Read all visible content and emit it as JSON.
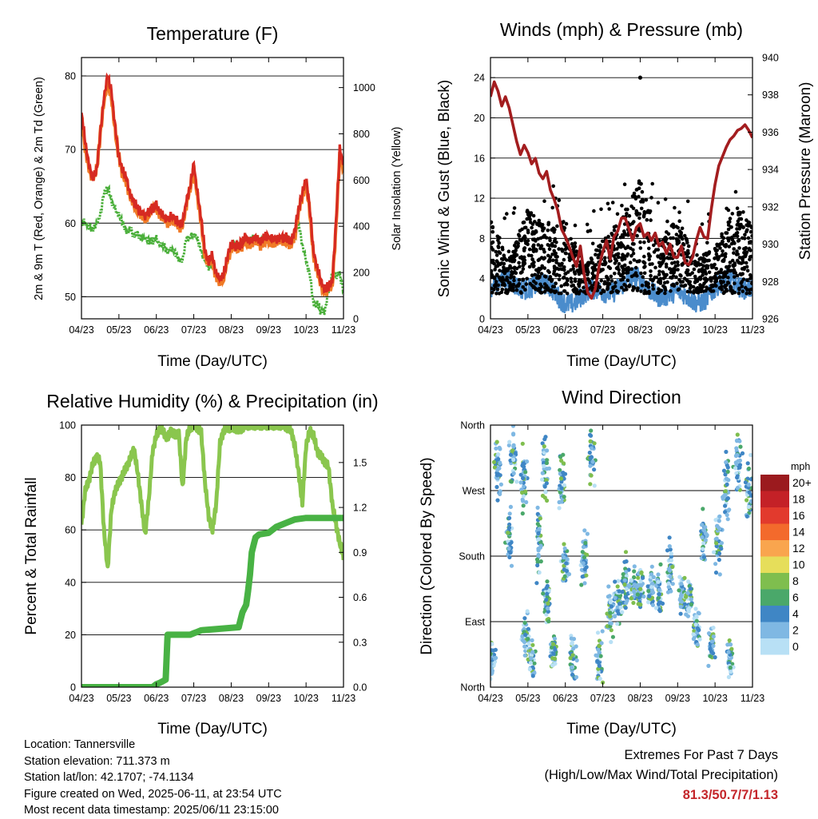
{
  "time_ticks": [
    "04/23",
    "05/23",
    "06/23",
    "07/23",
    "08/23",
    "09/23",
    "10/23",
    "11/23"
  ],
  "temperature": {
    "title": "Temperature (F)",
    "ylabel_left": "2m & 9m T (Red, Orange) & 2m Td (Green)",
    "ylabel_right": "Solar Insolation (Yellow)",
    "xlabel": "Time (Day/UTC)"
  },
  "winds": {
    "title": "Winds (mph) & Pressure (mb)",
    "ylabel_left": "Sonic Wind & Gust (Blue, Black)",
    "ylabel_right": "Station Pressure (Maroon)",
    "xlabel": "Time (Day/UTC)"
  },
  "humidity": {
    "title": "Relative Humidity (%) & Precipitation (in)",
    "ylabel_left": "Percent & Total Rainfall",
    "xlabel": "Time (Day/UTC)"
  },
  "wind_direction": {
    "title": "Wind Direction",
    "ylabel_left": "Direction (Colored By Speed)",
    "xlabel": "Time (Day/UTC)",
    "legend_title": "mph",
    "legend_labels": [
      "20+",
      "18",
      "16",
      "14",
      "12",
      "10",
      "8",
      "6",
      "4",
      "2",
      "0"
    ],
    "legend_colors": [
      "#9b1a1e",
      "#c42127",
      "#e23a2d",
      "#f36a2c",
      "#f9a54e",
      "#e6de5a",
      "#7fbe4e",
      "#4aa86a",
      "#3f86c5",
      "#7fb8e3",
      "#b8e0f5"
    ]
  },
  "info": {
    "location": "Location: Tannersville",
    "elevation": "Station elevation: 711.373 m",
    "latlon": "Station lat/lon: 42.1707; -74.1134",
    "created": "Figure created on Wed, 2025-06-11, at 23:54 UTC",
    "recent": "Most recent data timestamp: 2025/06/11 23:15:00"
  },
  "extremes": {
    "line1": "Extremes For Past 7 Days",
    "line2": "(High/Low/Max Wind/Total Precipitation)",
    "value": "81.3/50.7/7/1.13"
  },
  "chart_data": [
    {
      "type": "line",
      "title": "Temperature (F)",
      "xlabel": "Time (Day/UTC)",
      "ylabel": "2m & 9m T (Red, Orange) & 2m Td (Green)",
      "y2label": "Solar Insolation (Yellow)",
      "x_ticks": [
        "04/23",
        "05/23",
        "06/23",
        "07/23",
        "08/23",
        "09/23",
        "10/23",
        "11/23"
      ],
      "y_ticks": [
        50,
        60,
        70,
        80
      ],
      "y2_ticks": [
        0,
        200,
        400,
        600,
        800,
        1000
      ],
      "ylim": [
        47,
        82.5
      ],
      "y2lim": [
        0,
        1130
      ],
      "x": [
        0,
        0.1,
        0.2,
        0.3,
        0.4,
        0.5,
        0.6,
        0.7,
        0.8,
        0.9,
        1,
        1.1,
        1.2,
        1.3,
        1.4,
        1.5,
        1.6,
        1.7,
        1.8,
        1.9,
        2,
        2.1,
        2.2,
        2.3,
        2.4,
        2.5,
        2.6,
        2.7,
        2.8,
        2.9,
        3,
        3.1,
        3.2,
        3.3,
        3.4,
        3.5,
        3.6,
        3.7,
        3.8,
        3.9,
        4,
        4.1,
        4.2,
        4.3,
        4.4,
        4.5,
        4.6,
        4.7,
        4.8,
        4.9,
        5,
        5.1,
        5.2,
        5.3,
        5.4,
        5.5,
        5.6,
        5.7,
        5.8,
        5.9,
        6,
        6.1,
        6.2,
        6.3,
        6.4,
        6.5,
        6.6,
        6.7,
        6.8,
        6.9,
        7
      ],
      "series": [
        {
          "name": "2m T",
          "color": "#d62a22",
          "values": [
            75,
            71,
            68,
            66,
            67,
            72,
            77,
            80,
            78,
            73,
            69,
            67,
            66,
            64,
            63,
            62,
            61.5,
            61,
            61.5,
            62,
            62.5,
            61.5,
            61,
            60.5,
            61,
            60.5,
            60,
            60,
            63,
            65,
            68,
            64,
            60.5,
            56,
            55,
            55.5,
            53,
            52.5,
            53,
            55.5,
            57,
            57,
            57,
            57.5,
            58,
            57.5,
            58,
            58,
            57.5,
            58,
            58,
            57.8,
            57.8,
            58,
            58,
            58,
            57.5,
            59,
            62,
            64,
            66,
            62,
            56,
            54,
            52,
            51,
            51.5,
            52,
            60,
            70,
            68
          ]
        },
        {
          "name": "9m T",
          "color": "#f07a26",
          "values": [
            74.5,
            70,
            67.5,
            66,
            67,
            72,
            76.5,
            79,
            77,
            72.5,
            69,
            66.5,
            65.5,
            63.5,
            62.5,
            61.5,
            61,
            60.5,
            61,
            62,
            62,
            61,
            60.5,
            60,
            60.5,
            60,
            59.5,
            59.5,
            62.5,
            64.5,
            67.5,
            63.5,
            60,
            55.5,
            54.5,
            55,
            52.5,
            52,
            52.5,
            55,
            56.5,
            56.5,
            56.5,
            57,
            57.5,
            57,
            57.5,
            57.5,
            57,
            57.5,
            57.5,
            57.3,
            57.3,
            57.5,
            57.5,
            57.5,
            57,
            58.5,
            61.5,
            63.5,
            65.5,
            61.5,
            55.5,
            53.5,
            51.5,
            50.5,
            51,
            51.5,
            59.5,
            69.5,
            67.5
          ]
        },
        {
          "name": "2m Td",
          "color": "#4aaf3a",
          "values": [
            60,
            60,
            59.5,
            59,
            60,
            61,
            64,
            65,
            63,
            62,
            61,
            60,
            59,
            59,
            58.5,
            58.5,
            58,
            58,
            57.5,
            57.5,
            58,
            57,
            57,
            56,
            56.5,
            56,
            55,
            55,
            58,
            58,
            58.5,
            58,
            56,
            55,
            54,
            54.5,
            53,
            52,
            52.5,
            55,
            57,
            57,
            57,
            57.5,
            58,
            57.5,
            58,
            58,
            57.5,
            58,
            57.5,
            57.5,
            57.5,
            58,
            58,
            58,
            57.5,
            58,
            60,
            57,
            55,
            53,
            49,
            49,
            48,
            48,
            51,
            53,
            53,
            53,
            51
          ]
        }
      ],
      "solar": {
        "name": "Solar Insolation",
        "color": "#f6df62",
        "peaks": [
          650,
          1000,
          1100,
          300,
          800,
          300,
          1050,
          200,
          750,
          300,
          900,
          400,
          700,
          600,
          300
        ]
      }
    },
    {
      "type": "scatter",
      "title": "Winds (mph) & Pressure (mb)",
      "xlabel": "Time (Day/UTC)",
      "ylabel": "Sonic Wind & Gust (Blue, Black)",
      "y2label": "Station Pressure (Maroon)",
      "x_ticks": [
        "04/23",
        "05/23",
        "06/23",
        "07/23",
        "08/23",
        "09/23",
        "10/23",
        "11/23"
      ],
      "y_ticks": [
        0,
        4,
        8,
        12,
        16,
        20,
        24
      ],
      "y2_ticks": [
        926,
        928,
        930,
        932,
        934,
        936,
        938,
        940
      ],
      "ylim": [
        0,
        26
      ],
      "y2lim": [
        926,
        940
      ],
      "pressure": {
        "name": "Station Pressure",
        "color": "#a31d1f",
        "x": [
          0,
          0.1,
          0.2,
          0.3,
          0.4,
          0.5,
          0.6,
          0.7,
          0.8,
          0.9,
          1,
          1.1,
          1.2,
          1.3,
          1.4,
          1.5,
          1.6,
          1.7,
          1.8,
          1.9,
          2,
          2.1,
          2.2,
          2.3,
          2.4,
          2.5,
          2.6,
          2.7,
          2.8,
          2.9,
          3,
          3.1,
          3.2,
          3.3,
          3.4,
          3.5,
          3.6,
          3.7,
          3.8,
          3.9,
          4,
          4.1,
          4.2,
          4.3,
          4.4,
          4.5,
          4.6,
          4.7,
          4.8,
          4.9,
          5,
          5.1,
          5.2,
          5.3,
          5.4,
          5.5,
          5.6,
          5.7,
          5.8,
          5.9,
          6,
          6.1,
          6.2,
          6.3,
          6.4,
          6.5,
          6.6,
          6.7,
          6.8,
          6.9,
          7
        ],
        "values": [
          937.9,
          938.7,
          938.2,
          937.4,
          937.9,
          937.3,
          936.4,
          935.5,
          934.8,
          935.3,
          934.9,
          934.3,
          934.6,
          933.8,
          933.5,
          933.9,
          932.9,
          932.4,
          931.8,
          930.8,
          930.4,
          929.9,
          929.3,
          928.8,
          929.9,
          928.4,
          927.4,
          927.1,
          927.6,
          928.8,
          929.6,
          930.2,
          929.2,
          930.4,
          930.7,
          931.4,
          931.4,
          930.8,
          930.2,
          930.9,
          931.1,
          930.4,
          930.6,
          930.2,
          930.6,
          929.9,
          930.1,
          929.5,
          930.0,
          929.3,
          929.3,
          929.9,
          929.0,
          928.9,
          929.3,
          930.2,
          930.9,
          930.4,
          930.3,
          931.9,
          933.2,
          934.2,
          934.7,
          935.2,
          935.6,
          935.8,
          936.1,
          936.2,
          936.4,
          936.1,
          935.7
        ]
      },
      "sustained_color": "#4a8ccc",
      "gust_color": "#000000",
      "max_gust": 24
    },
    {
      "type": "line",
      "title": "Relative Humidity (%) & Precipitation (in)",
      "xlabel": "Time (Day/UTC)",
      "ylabel": "Percent & Total Rainfall",
      "x_ticks": [
        "04/23",
        "05/23",
        "06/23",
        "07/23",
        "08/23",
        "09/23",
        "10/23",
        "11/23"
      ],
      "y_ticks": [
        0,
        20,
        40,
        60,
        80,
        100
      ],
      "y2_ticks": [
        "0.0",
        "0.3",
        "0.6",
        "0.9",
        "1.2",
        "1.5"
      ],
      "ylim": [
        0,
        100
      ],
      "y2lim": [
        0,
        1.75
      ],
      "series": [
        {
          "name": "Relative Humidity",
          "color": "#8ac64e",
          "x": [
            0,
            0.1,
            0.2,
            0.3,
            0.4,
            0.5,
            0.6,
            0.7,
            0.8,
            0.9,
            1,
            1.1,
            1.2,
            1.3,
            1.4,
            1.5,
            1.6,
            1.7,
            1.8,
            1.9,
            2,
            2.1,
            2.2,
            2.3,
            2.4,
            2.5,
            2.6,
            2.7,
            2.8,
            2.9,
            3,
            3.1,
            3.2,
            3.3,
            3.4,
            3.5,
            3.6,
            3.7,
            3.8,
            3.9,
            4,
            4.1,
            4.2,
            4.3,
            4.4,
            4.5,
            4.6,
            4.7,
            4.8,
            4.9,
            5,
            5.1,
            5.2,
            5.3,
            5.4,
            5.5,
            5.6,
            5.7,
            5.8,
            5.9,
            6,
            6.1,
            6.2,
            6.3,
            6.4,
            6.5,
            6.6,
            6.7,
            6.8,
            6.9,
            7
          ],
          "values": [
            62,
            75,
            79,
            85,
            88,
            86,
            60,
            45,
            68,
            75,
            78,
            81,
            84,
            87,
            91,
            82,
            70,
            58,
            72,
            90,
            96,
            99,
            97,
            95,
            98,
            96,
            97,
            76,
            95,
            99,
            100,
            99,
            97,
            78,
            65,
            60,
            70,
            93,
            98,
            99,
            99,
            99,
            98,
            99,
            100,
            100,
            100,
            100,
            100,
            100,
            100,
            100,
            100,
            100,
            100,
            99,
            98,
            92,
            82,
            70,
            92,
            98,
            96,
            90,
            88,
            86,
            84,
            70,
            62,
            55,
            50
          ]
        },
        {
          "name": "Total Rainfall",
          "color": "#48b244",
          "x": [
            0,
            0.8,
            1.6,
            1.9,
            2.0,
            2.1,
            2.25,
            2.3,
            2.9,
            3.0,
            3.1,
            3.2,
            4.2,
            4.25,
            4.3,
            4.4,
            4.45,
            4.5,
            4.55,
            4.6,
            4.65,
            4.7,
            4.75,
            5.0,
            5.2,
            5.5,
            5.7,
            6.0,
            7.0
          ],
          "values": [
            0,
            0,
            0,
            0,
            0.02,
            0.03,
            0.05,
            0.35,
            0.35,
            0.36,
            0.37,
            0.38,
            0.4,
            0.45,
            0.5,
            0.55,
            0.64,
            0.75,
            0.9,
            0.95,
            1.0,
            1.01,
            1.02,
            1.03,
            1.07,
            1.1,
            1.12,
            1.13,
            1.13
          ]
        }
      ]
    },
    {
      "type": "scatter",
      "title": "Wind Direction",
      "xlabel": "Time (Day/UTC)",
      "ylabel": "Direction (Colored By Speed)",
      "x_ticks": [
        "04/23",
        "05/23",
        "06/23",
        "07/23",
        "08/23",
        "09/23",
        "10/23",
        "11/23"
      ],
      "y_ticks": [
        "North",
        "East",
        "South",
        "West",
        "North"
      ],
      "ylim": [
        0,
        360
      ],
      "clusters": [
        [
          0.05,
          40,
          25
        ],
        [
          0.2,
          300,
          40
        ],
        [
          0.5,
          200,
          40
        ],
        [
          0.6,
          310,
          40
        ],
        [
          0.9,
          280,
          40
        ],
        [
          0.95,
          70,
          30
        ],
        [
          1.1,
          40,
          25
        ],
        [
          1.3,
          200,
          45
        ],
        [
          1.45,
          300,
          40
        ],
        [
          1.5,
          120,
          30
        ],
        [
          1.7,
          50,
          25
        ],
        [
          1.9,
          280,
          40
        ],
        [
          2.0,
          170,
          30
        ],
        [
          2.2,
          40,
          30
        ],
        [
          2.5,
          180,
          40
        ],
        [
          2.7,
          320,
          40
        ],
        [
          2.9,
          40,
          35
        ],
        [
          3.2,
          100,
          30
        ],
        [
          3.4,
          120,
          30
        ],
        [
          3.6,
          140,
          35
        ],
        [
          3.8,
          140,
          25
        ],
        [
          4.0,
          135,
          25
        ],
        [
          4.3,
          135,
          30
        ],
        [
          4.5,
          130,
          30
        ],
        [
          4.8,
          160,
          35
        ],
        [
          5.1,
          130,
          30
        ],
        [
          5.3,
          120,
          25
        ],
        [
          5.5,
          80,
          30
        ],
        [
          5.7,
          210,
          40
        ],
        [
          5.9,
          60,
          25
        ],
        [
          6.1,
          200,
          40
        ],
        [
          6.3,
          280,
          45
        ],
        [
          6.4,
          40,
          25
        ],
        [
          6.6,
          300,
          50
        ],
        [
          6.9,
          270,
          40
        ]
      ]
    }
  ]
}
